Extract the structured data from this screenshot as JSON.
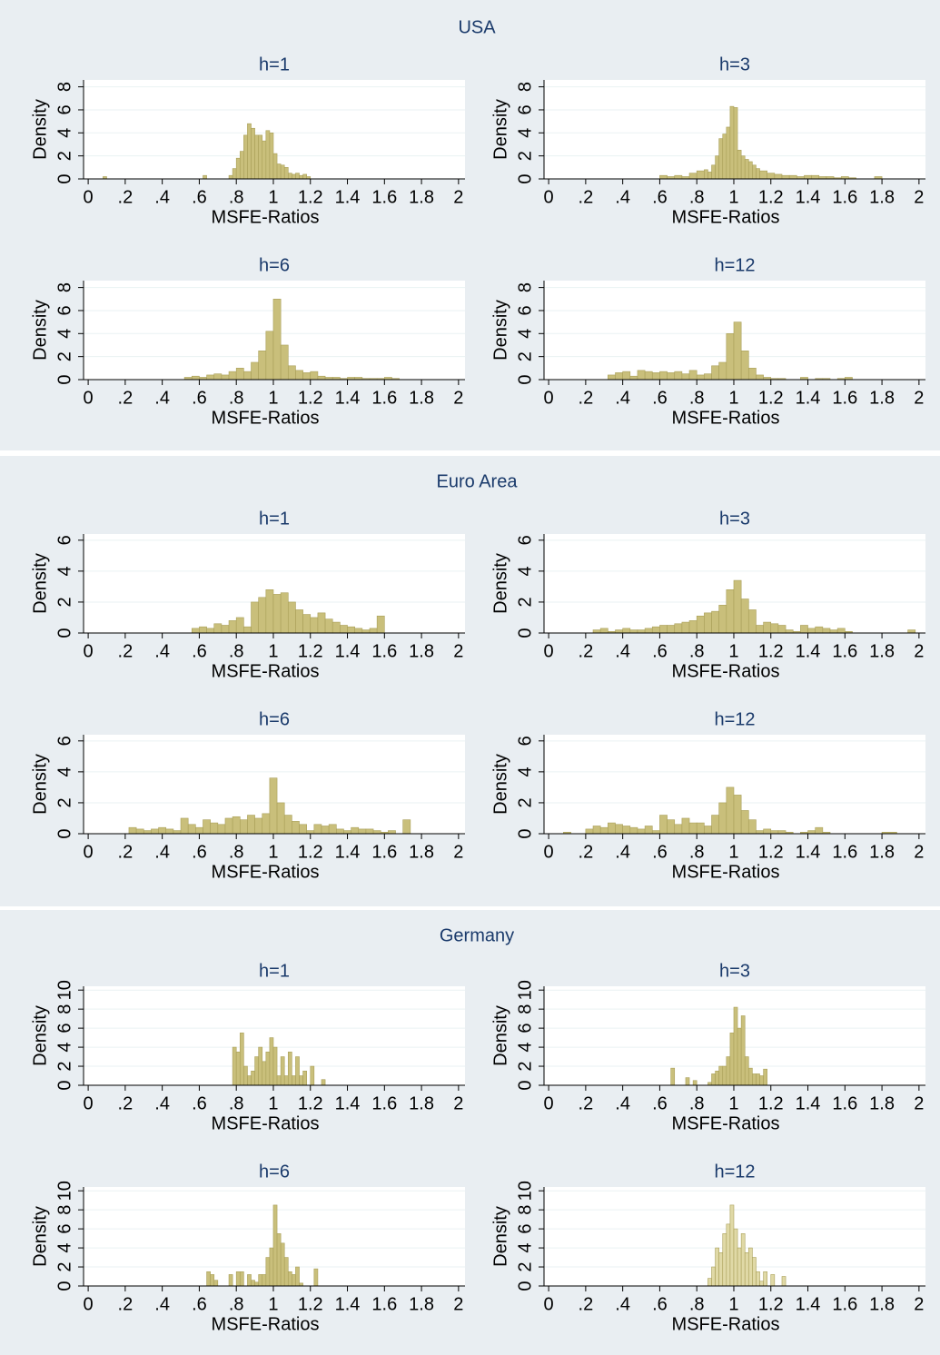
{
  "groups": [
    "USA",
    "Euro Area",
    "Germany"
  ],
  "chart_data": [
    {
      "type": "histogram",
      "title": "h=1",
      "xlabel": "MSFE-Ratios",
      "ylabel": "Density",
      "color": "#c9bf7b",
      "grid": true,
      "xlim": [
        -0.025,
        2.035
      ],
      "ylim": [
        0,
        8.6
      ],
      "xticks": [
        0,
        {
          "value": 0.2,
          "label": ".2"
        },
        {
          "value": 0.4,
          "label": ".4"
        },
        {
          "value": 0.6,
          "label": ".6"
        },
        {
          "value": 0.8,
          "label": ".8"
        },
        1,
        1.2,
        1.4,
        1.6,
        1.8,
        2
      ],
      "yticks": [
        0,
        2,
        4,
        6,
        8
      ],
      "bins": [
        0.08,
        0.1,
        0.62,
        0.64,
        0.76,
        0.78,
        0.8,
        0.82,
        0.84,
        0.86,
        0.88,
        0.9,
        0.92,
        0.94,
        0.96,
        0.98,
        1,
        1.02,
        1.04,
        1.06,
        1.08,
        1.1,
        1.12,
        1.14,
        1.16,
        1.18,
        1.2
      ],
      "values": [
        0.2,
        0,
        0.3,
        0,
        0.3,
        0.9,
        1.8,
        2.4,
        3.8,
        4.8,
        4.4,
        3.8,
        3.8,
        3.3,
        4.2,
        4.0,
        2.2,
        1.3,
        1.2,
        1.0,
        0.5,
        0.4,
        0.5,
        0.3,
        0.4,
        0.2
      ]
    },
    {
      "type": "histogram",
      "title": "h=3",
      "xlabel": "MSFE-Ratios",
      "ylabel": "Density",
      "color": "#c9bf7b",
      "grid": true,
      "xlim": [
        -0.025,
        2.035
      ],
      "ylim": [
        0,
        8.6
      ],
      "xticks": [
        0,
        {
          "value": 0.2,
          "label": ".2"
        },
        {
          "value": 0.4,
          "label": ".4"
        },
        {
          "value": 0.6,
          "label": ".6"
        },
        {
          "value": 0.8,
          "label": ".8"
        },
        1,
        1.2,
        1.4,
        1.6,
        1.8,
        2
      ],
      "yticks": [
        0,
        2,
        4,
        6,
        8
      ],
      "bins": [
        0.6,
        0.64,
        0.68,
        0.72,
        0.76,
        0.8,
        0.84,
        0.86,
        0.88,
        0.9,
        0.92,
        0.94,
        0.96,
        0.98,
        1,
        1.02,
        1.04,
        1.06,
        1.08,
        1.1,
        1.12,
        1.14,
        1.18,
        1.22,
        1.26,
        1.3,
        1.34,
        1.38,
        1.42,
        1.46,
        1.5,
        1.54,
        1.58,
        1.62,
        1.66,
        1.76,
        1.8
      ],
      "values": [
        0.3,
        0.2,
        0.3,
        0.2,
        0.5,
        0.7,
        0.8,
        0.6,
        1.2,
        2.0,
        3.5,
        3.9,
        4.5,
        6.3,
        6.2,
        2.5,
        2.0,
        1.7,
        1.5,
        1.2,
        0.9,
        0.7,
        0.5,
        0.4,
        0.3,
        0.3,
        0.2,
        0.3,
        0.3,
        0.2,
        0.2,
        0.1,
        0.2,
        0.1,
        0,
        0.2
      ]
    },
    {
      "type": "histogram",
      "title": "h=6",
      "xlabel": "MSFE-Ratios",
      "ylabel": "Density",
      "color": "#c9bf7b",
      "grid": true,
      "xlim": [
        -0.025,
        2.035
      ],
      "ylim": [
        0,
        8.6
      ],
      "xticks": [
        0,
        {
          "value": 0.2,
          "label": ".2"
        },
        {
          "value": 0.4,
          "label": ".4"
        },
        {
          "value": 0.6,
          "label": ".6"
        },
        {
          "value": 0.8,
          "label": ".8"
        },
        1,
        1.2,
        1.4,
        1.6,
        1.8,
        2
      ],
      "yticks": [
        0,
        2,
        4,
        6,
        8
      ],
      "bins": [
        0.52,
        0.56,
        0.6,
        0.64,
        0.68,
        0.72,
        0.76,
        0.8,
        0.84,
        0.88,
        0.92,
        0.96,
        1,
        1.04,
        1.08,
        1.12,
        1.16,
        1.2,
        1.24,
        1.28,
        1.32,
        1.36,
        1.4,
        1.44,
        1.48,
        1.52,
        1.56,
        1.6,
        1.64,
        1.68
      ],
      "values": [
        0.2,
        0.3,
        0.2,
        0.4,
        0.5,
        0.4,
        0.7,
        1.0,
        0.7,
        1.5,
        2.5,
        4.2,
        7.0,
        3.0,
        1.2,
        0.8,
        0.6,
        0.7,
        0.3,
        0.2,
        0.2,
        0.1,
        0.2,
        0.2,
        0.1,
        0.1,
        0.1,
        0.2,
        0.1
      ]
    },
    {
      "type": "histogram",
      "title": "h=12",
      "xlabel": "MSFE-Ratios",
      "ylabel": "Density",
      "color": "#c9bf7b",
      "grid": true,
      "xlim": [
        -0.025,
        2.035
      ],
      "ylim": [
        0,
        8.6
      ],
      "xticks": [
        0,
        {
          "value": 0.2,
          "label": ".2"
        },
        {
          "value": 0.4,
          "label": ".4"
        },
        {
          "value": 0.6,
          "label": ".6"
        },
        {
          "value": 0.8,
          "label": ".8"
        },
        1,
        1.2,
        1.4,
        1.6,
        1.8,
        2
      ],
      "yticks": [
        0,
        2,
        4,
        6,
        8
      ],
      "bins": [
        0.32,
        0.36,
        0.4,
        0.44,
        0.48,
        0.52,
        0.56,
        0.6,
        0.64,
        0.68,
        0.72,
        0.76,
        0.8,
        0.84,
        0.88,
        0.92,
        0.96,
        1,
        1.04,
        1.08,
        1.12,
        1.16,
        1.2,
        1.24,
        1.28,
        1.32,
        1.36,
        1.4,
        1.44,
        1.48,
        1.52,
        1.56,
        1.6,
        1.64
      ],
      "values": [
        0.4,
        0.6,
        0.7,
        0.3,
        0.8,
        0.7,
        0.6,
        0.7,
        0.6,
        0.7,
        0.5,
        0.8,
        0.4,
        0.5,
        1.2,
        1.5,
        4.0,
        5.0,
        2.5,
        1.0,
        0.4,
        0.2,
        0.1,
        0.1,
        0,
        0,
        0.2,
        0,
        0.1,
        0.1,
        0,
        0.1,
        0.2
      ]
    },
    {
      "type": "histogram",
      "title": "h=1",
      "xlabel": "MSFE-Ratios",
      "ylabel": "Density",
      "color": "#c9bf7b",
      "grid": true,
      "xlim": [
        -0.025,
        2.035
      ],
      "ylim": [
        0,
        6.4
      ],
      "xticks": [
        0,
        {
          "value": 0.2,
          "label": ".2"
        },
        {
          "value": 0.4,
          "label": ".4"
        },
        {
          "value": 0.6,
          "label": ".6"
        },
        {
          "value": 0.8,
          "label": ".8"
        },
        1,
        1.2,
        1.4,
        1.6,
        1.8,
        2
      ],
      "yticks": [
        0,
        2,
        4,
        6
      ],
      "bins": [
        0.56,
        0.6,
        0.64,
        0.68,
        0.72,
        0.76,
        0.8,
        0.84,
        0.88,
        0.92,
        0.96,
        1,
        1.04,
        1.08,
        1.12,
        1.16,
        1.2,
        1.24,
        1.28,
        1.32,
        1.36,
        1.4,
        1.44,
        1.48,
        1.52,
        1.56,
        1.6
      ],
      "values": [
        0.3,
        0.4,
        0.3,
        0.6,
        0.5,
        0.8,
        1.0,
        0.4,
        2.0,
        2.3,
        2.8,
        2.5,
        2.6,
        2.0,
        1.5,
        1.2,
        1.0,
        1.3,
        0.9,
        0.7,
        0.5,
        0.4,
        0.3,
        0.2,
        0.3,
        1.1
      ]
    },
    {
      "type": "histogram",
      "title": "h=3",
      "xlabel": "MSFE-Ratios",
      "ylabel": "Density",
      "color": "#c9bf7b",
      "grid": true,
      "xlim": [
        -0.025,
        2.035
      ],
      "ylim": [
        0,
        6.4
      ],
      "xticks": [
        0,
        {
          "value": 0.2,
          "label": ".2"
        },
        {
          "value": 0.4,
          "label": ".4"
        },
        {
          "value": 0.6,
          "label": ".6"
        },
        {
          "value": 0.8,
          "label": ".8"
        },
        1,
        1.2,
        1.4,
        1.6,
        1.8,
        2
      ],
      "yticks": [
        0,
        2,
        4,
        6
      ],
      "bins": [
        0.24,
        0.28,
        0.32,
        0.36,
        0.4,
        0.44,
        0.48,
        0.52,
        0.56,
        0.6,
        0.64,
        0.68,
        0.72,
        0.76,
        0.8,
        0.84,
        0.88,
        0.92,
        0.96,
        1,
        1.04,
        1.08,
        1.12,
        1.16,
        1.2,
        1.24,
        1.28,
        1.32,
        1.36,
        1.4,
        1.44,
        1.48,
        1.52,
        1.56,
        1.6,
        1.64,
        1.94,
        1.98
      ],
      "values": [
        0.2,
        0.3,
        0.1,
        0.2,
        0.3,
        0.2,
        0.2,
        0.3,
        0.4,
        0.5,
        0.5,
        0.6,
        0.7,
        0.8,
        1.1,
        1.3,
        1.4,
        1.8,
        2.8,
        3.4,
        2.2,
        1.5,
        0.5,
        0.7,
        0.6,
        0.5,
        0.2,
        0.1,
        0.5,
        0.3,
        0.4,
        0.3,
        0.2,
        0.3,
        0.1,
        0,
        0.2
      ]
    },
    {
      "type": "histogram",
      "title": "h=6",
      "xlabel": "MSFE-Ratios",
      "ylabel": "Density",
      "color": "#c9bf7b",
      "grid": true,
      "xlim": [
        -0.025,
        2.035
      ],
      "ylim": [
        0,
        6.4
      ],
      "xticks": [
        0,
        {
          "value": 0.2,
          "label": ".2"
        },
        {
          "value": 0.4,
          "label": ".4"
        },
        {
          "value": 0.6,
          "label": ".6"
        },
        {
          "value": 0.8,
          "label": ".8"
        },
        1,
        1.2,
        1.4,
        1.6,
        1.8,
        2
      ],
      "yticks": [
        0,
        2,
        4,
        6
      ],
      "bins": [
        0.22,
        0.26,
        0.3,
        0.34,
        0.38,
        0.42,
        0.46,
        0.5,
        0.54,
        0.58,
        0.62,
        0.66,
        0.7,
        0.74,
        0.78,
        0.82,
        0.86,
        0.9,
        0.94,
        0.98,
        1.02,
        1.06,
        1.1,
        1.14,
        1.18,
        1.22,
        1.26,
        1.3,
        1.34,
        1.38,
        1.42,
        1.46,
        1.5,
        1.54,
        1.58,
        1.62,
        1.66,
        1.7,
        1.74
      ],
      "values": [
        0.4,
        0.3,
        0.2,
        0.3,
        0.4,
        0.3,
        0.2,
        1.0,
        0.6,
        0.4,
        0.9,
        0.7,
        0.6,
        1.0,
        1.1,
        0.9,
        1.2,
        1.0,
        1.3,
        3.6,
        2.0,
        1.2,
        0.8,
        0.6,
        0.2,
        0.6,
        0.5,
        0.6,
        0.3,
        0.2,
        0.4,
        0.3,
        0.3,
        0.2,
        0.1,
        0.2,
        0,
        0.9
      ]
    },
    {
      "type": "histogram",
      "title": "h=12",
      "xlabel": "MSFE-Ratios",
      "ylabel": "Density",
      "color": "#c9bf7b",
      "grid": true,
      "xlim": [
        -0.025,
        2.035
      ],
      "ylim": [
        0,
        6.4
      ],
      "xticks": [
        0,
        {
          "value": 0.2,
          "label": ".2"
        },
        {
          "value": 0.4,
          "label": ".4"
        },
        {
          "value": 0.6,
          "label": ".6"
        },
        {
          "value": 0.8,
          "label": ".8"
        },
        1,
        1.2,
        1.4,
        1.6,
        1.8,
        2
      ],
      "yticks": [
        0,
        2,
        4,
        6
      ],
      "bins": [
        0.08,
        0.12,
        0.2,
        0.24,
        0.28,
        0.32,
        0.36,
        0.4,
        0.44,
        0.48,
        0.52,
        0.56,
        0.6,
        0.64,
        0.68,
        0.72,
        0.76,
        0.8,
        0.84,
        0.88,
        0.92,
        0.96,
        1,
        1.04,
        1.08,
        1.12,
        1.16,
        1.2,
        1.24,
        1.28,
        1.32,
        1.36,
        1.4,
        1.44,
        1.48,
        1.52,
        1.56,
        1.8,
        1.88
      ],
      "values": [
        0.1,
        0,
        0.3,
        0.5,
        0.4,
        0.7,
        0.6,
        0.5,
        0.4,
        0.3,
        0.5,
        0.2,
        1.2,
        0.9,
        0.6,
        1.0,
        0.7,
        0.7,
        0.5,
        1.2,
        2.0,
        3.0,
        2.5,
        1.5,
        0.9,
        0.2,
        0.3,
        0.2,
        0.2,
        0.1,
        0,
        0.1,
        0.2,
        0.4,
        0.1,
        0,
        0,
        0.1
      ]
    },
    {
      "type": "histogram",
      "title": "h=1",
      "xlabel": "MSFE-Ratios",
      "ylabel": "Density",
      "color": "#c9bf7b",
      "grid": true,
      "xlim": [
        -0.025,
        2.035
      ],
      "ylim": [
        0,
        10.4
      ],
      "xticks": [
        0,
        {
          "value": 0.2,
          "label": ".2"
        },
        {
          "value": 0.4,
          "label": ".4"
        },
        {
          "value": 0.6,
          "label": ".6"
        },
        {
          "value": 0.8,
          "label": ".8"
        },
        1,
        1.2,
        1.4,
        1.6,
        1.8,
        2
      ],
      "yticks": [
        0,
        2,
        4,
        6,
        8,
        10
      ],
      "bins": [
        0.78,
        0.8,
        0.82,
        0.84,
        0.86,
        0.88,
        0.9,
        0.92,
        0.94,
        0.96,
        0.98,
        1,
        1.02,
        1.04,
        1.06,
        1.08,
        1.1,
        1.12,
        1.14,
        1.16,
        1.18,
        1.2,
        1.22,
        1.24,
        1.26,
        1.28,
        1.3
      ],
      "values": [
        4,
        3.5,
        5.5,
        2,
        1,
        1.5,
        3,
        4,
        2.5,
        3.5,
        5,
        4,
        1,
        3,
        1,
        3.5,
        1,
        3,
        1,
        1.5,
        0,
        2,
        0,
        0,
        0.6,
        0
      ]
    },
    {
      "type": "histogram",
      "title": "h=3",
      "xlabel": "MSFE-Ratios",
      "ylabel": "Density",
      "color": "#c9bf7b",
      "grid": true,
      "xlim": [
        -0.025,
        2.035
      ],
      "ylim": [
        0,
        10.4
      ],
      "xticks": [
        0,
        {
          "value": 0.2,
          "label": ".2"
        },
        {
          "value": 0.4,
          "label": ".4"
        },
        {
          "value": 0.6,
          "label": ".6"
        },
        {
          "value": 0.8,
          "label": ".8"
        },
        1,
        1.2,
        1.4,
        1.6,
        1.8,
        2
      ],
      "yticks": [
        0,
        2,
        4,
        6,
        8,
        10
      ],
      "bins": [
        0.66,
        0.68,
        0.74,
        0.76,
        0.78,
        0.8,
        0.86,
        0.88,
        0.9,
        0.92,
        0.94,
        0.96,
        0.98,
        1,
        1.02,
        1.04,
        1.06,
        1.08,
        1.1,
        1.12,
        1.14,
        1.16,
        1.18
      ],
      "values": [
        1.8,
        0,
        0.8,
        0,
        0.5,
        0,
        0.3,
        1.2,
        1.5,
        2,
        2,
        3,
        5.5,
        8.2,
        6,
        7.3,
        3,
        1.8,
        1.2,
        1.2,
        1.0,
        1.7
      ]
    },
    {
      "type": "histogram",
      "title": "h=6",
      "xlabel": "MSFE-Ratios",
      "ylabel": "Density",
      "color": "#c9bf7b",
      "grid": true,
      "xlim": [
        -0.025,
        2.035
      ],
      "ylim": [
        0,
        10.4
      ],
      "xticks": [
        0,
        {
          "value": 0.2,
          "label": ".2"
        },
        {
          "value": 0.4,
          "label": ".4"
        },
        {
          "value": 0.6,
          "label": ".6"
        },
        {
          "value": 0.8,
          "label": ".8"
        },
        1,
        1.2,
        1.4,
        1.6,
        1.8,
        2
      ],
      "yticks": [
        0,
        2,
        4,
        6,
        8,
        10
      ],
      "bins": [
        0.64,
        0.66,
        0.68,
        0.7,
        0.72,
        0.74,
        0.76,
        0.78,
        0.8,
        0.82,
        0.84,
        0.86,
        0.88,
        0.9,
        0.92,
        0.94,
        0.96,
        0.98,
        1,
        1.02,
        1.04,
        1.06,
        1.08,
        1.1,
        1.12,
        1.14,
        1.16,
        1.18,
        1.2,
        1.22,
        1.24
      ],
      "values": [
        1.5,
        1.2,
        0.6,
        0,
        0,
        0,
        1.2,
        0,
        1.5,
        1.5,
        0,
        1.2,
        0.6,
        0.4,
        1.2,
        1.2,
        3,
        4,
        8.5,
        5.5,
        4.5,
        3,
        1.5,
        1.2,
        2,
        0.3,
        0,
        0,
        0,
        1.8
      ]
    },
    {
      "type": "histogram",
      "title": "h=12",
      "xlabel": "MSFE-Ratios",
      "ylabel": "Density",
      "color": "#e0d9a6",
      "grid": true,
      "xlim": [
        -0.025,
        2.035
      ],
      "ylim": [
        0,
        10.4
      ],
      "xticks": [
        0,
        {
          "value": 0.2,
          "label": ".2"
        },
        {
          "value": 0.4,
          "label": ".4"
        },
        {
          "value": 0.6,
          "label": ".6"
        },
        {
          "value": 0.8,
          "label": ".8"
        },
        1,
        1.2,
        1.4,
        1.6,
        1.8,
        2
      ],
      "yticks": [
        0,
        2,
        4,
        6,
        8,
        10
      ],
      "bins": [
        0.86,
        0.88,
        0.9,
        0.92,
        0.94,
        0.96,
        0.98,
        1,
        1.02,
        1.04,
        1.06,
        1.08,
        1.1,
        1.12,
        1.14,
        1.16,
        1.18,
        1.2,
        1.22,
        1.24,
        1.26,
        1.28
      ],
      "values": [
        0.8,
        2,
        4,
        3.5,
        5.5,
        6.5,
        8.5,
        6,
        4,
        5.5,
        3.5,
        4,
        3,
        1.5,
        0.5,
        1.5,
        0,
        1.2,
        0,
        0,
        1.0
      ]
    }
  ]
}
